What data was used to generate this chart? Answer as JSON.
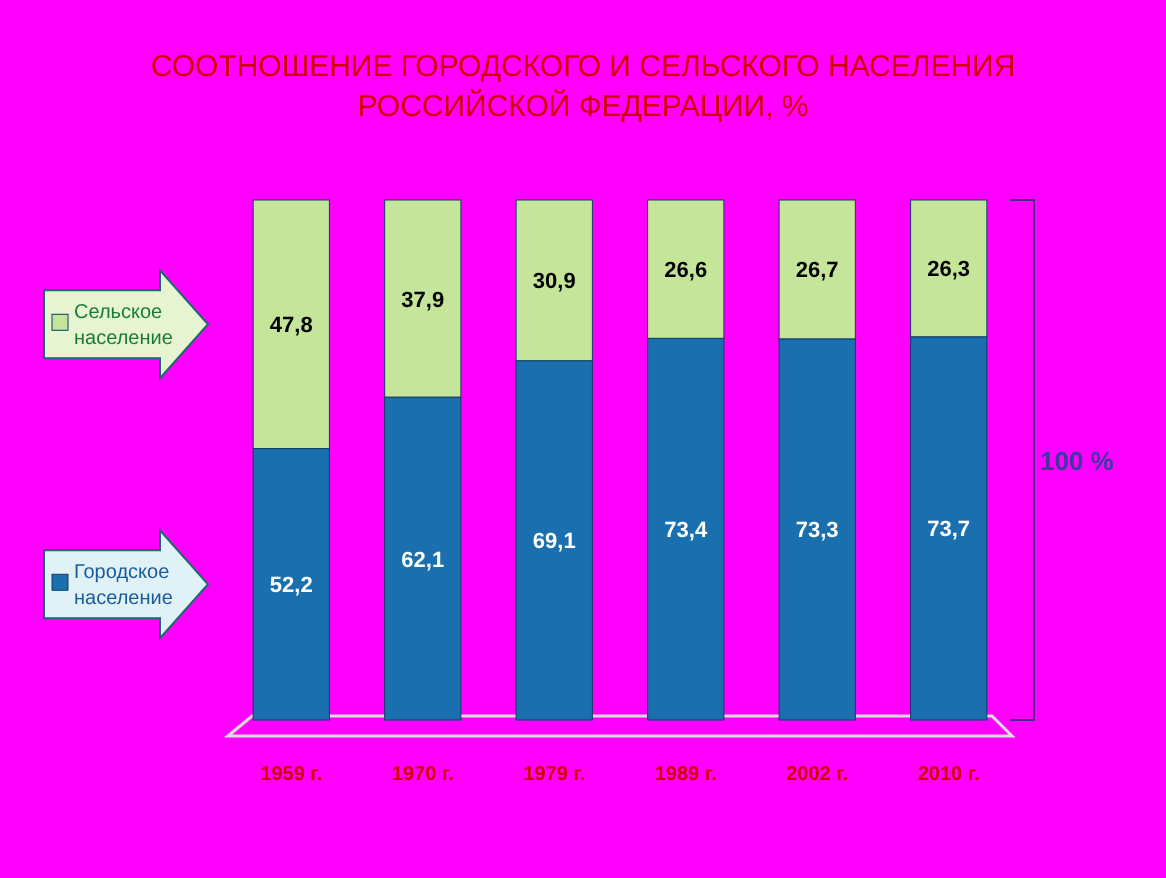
{
  "chart_data": {
    "type": "bar",
    "title": "СООТНОШЕНИЕ ГОРОДСКОГО И СЕЛЬСКОГО НАСЕЛЕНИЯ РОССИЙСКОЙ ФЕДЕРАЦИИ, %",
    "categories": [
      "1959 г.",
      "1970 г.",
      "1979 г.",
      "1989 г.",
      "2002 г.",
      "2010 г."
    ],
    "stacked": true,
    "legend": "left",
    "annotations": [
      "100 %"
    ],
    "series": [
      {
        "name": "Городское население",
        "color": "#1a6fae",
        "values": [
          52.2,
          62.1,
          69.1,
          73.4,
          73.3,
          73.7
        ],
        "value_labels": [
          "52,2",
          "62,1",
          "69,1",
          "73,4",
          "73,3",
          "73,7"
        ]
      },
      {
        "name": "Сельское население",
        "color": "#c4e59a",
        "values": [
          47.8,
          37.9,
          30.9,
          26.6,
          26.7,
          26.3
        ],
        "value_labels": [
          "47,8",
          "37,9",
          "30,9",
          "26,6",
          "26,7",
          "26,3"
        ]
      }
    ]
  }
}
